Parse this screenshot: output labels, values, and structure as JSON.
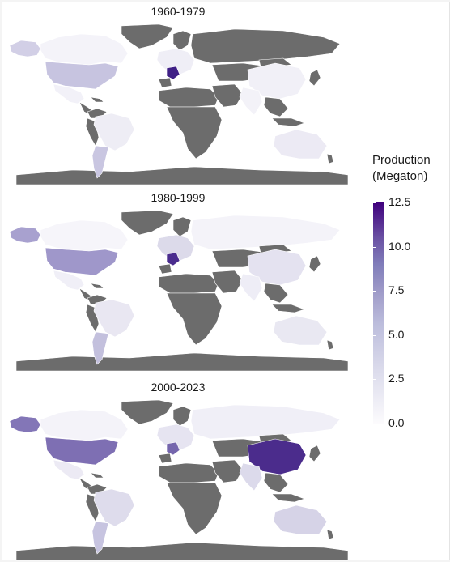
{
  "panels": [
    {
      "title": "1960-1979",
      "highlights": [
        {
          "region": "usa",
          "color": "#c7c4e0"
        },
        {
          "region": "alaska",
          "color": "#d2cfe6"
        },
        {
          "region": "canada",
          "color": "#f4f3f9"
        },
        {
          "region": "mexico",
          "color": "#f2f1f8"
        },
        {
          "region": "brazil",
          "color": "#eeedf5"
        },
        {
          "region": "argentina",
          "color": "#c9c6e1"
        },
        {
          "region": "france",
          "color": "#3f1f86"
        },
        {
          "region": "europe",
          "color": "#efeef6"
        },
        {
          "region": "russia",
          "color": "#6c6c6c"
        },
        {
          "region": "china",
          "color": "#f1f0f7"
        },
        {
          "region": "india",
          "color": "#f3f2f8"
        },
        {
          "region": "australia",
          "color": "#eceaf4"
        }
      ]
    },
    {
      "title": "1980-1999",
      "highlights": [
        {
          "region": "usa",
          "color": "#9f97ca"
        },
        {
          "region": "alaska",
          "color": "#a8a1cf"
        },
        {
          "region": "canada",
          "color": "#f6f5fa"
        },
        {
          "region": "mexico",
          "color": "#f0eff7"
        },
        {
          "region": "brazil",
          "color": "#e9e7f2"
        },
        {
          "region": "argentina",
          "color": "#c3c0dd"
        },
        {
          "region": "france",
          "color": "#4a2c8e"
        },
        {
          "region": "europe",
          "color": "#dcdaea"
        },
        {
          "region": "russia",
          "color": "#f4f3f9"
        },
        {
          "region": "china",
          "color": "#e4e2f0"
        },
        {
          "region": "india",
          "color": "#eeedf6"
        },
        {
          "region": "australia",
          "color": "#e9e8f2"
        }
      ]
    },
    {
      "title": "2000-2023",
      "highlights": [
        {
          "region": "usa",
          "color": "#7e6fb3"
        },
        {
          "region": "alaska",
          "color": "#8376b7"
        },
        {
          "region": "canada",
          "color": "#f4f3f9"
        },
        {
          "region": "mexico",
          "color": "#eceaf4"
        },
        {
          "region": "brazil",
          "color": "#dedcec"
        },
        {
          "region": "argentina",
          "color": "#c7c4e0"
        },
        {
          "region": "france",
          "color": "#7566ad"
        },
        {
          "region": "europe",
          "color": "#e6e4f1"
        },
        {
          "region": "russia",
          "color": "#f0eff7"
        },
        {
          "region": "china",
          "color": "#4b2c8c"
        },
        {
          "region": "india",
          "color": "#dcdaeb"
        },
        {
          "region": "australia",
          "color": "#d6d3e7"
        }
      ]
    }
  ],
  "legend": {
    "title_line1": "Production",
    "title_line2": "(Megaton)",
    "ticks": [
      "12.5",
      "10.0",
      "7.5",
      "5.0",
      "2.5",
      "0.0"
    ],
    "range": [
      0,
      12.5
    ]
  },
  "colors": {
    "no_data": "#6c6c6c",
    "border": "#ffffff",
    "scale_low": "#fcfbfd",
    "scale_high": "#3f007d"
  }
}
